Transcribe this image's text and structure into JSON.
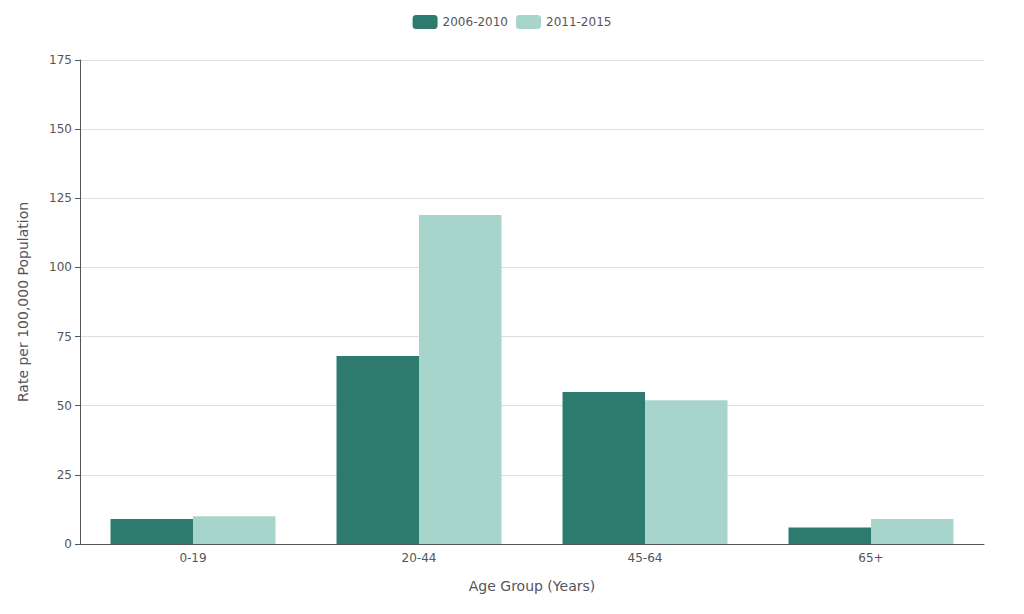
{
  "chart_data": {
    "type": "bar",
    "categories": [
      "0-19",
      "20-44",
      "45-64",
      "65+"
    ],
    "series": [
      {
        "name": "2006-2010",
        "color": "#2d7a6e",
        "values": [
          9.0,
          68.0,
          55.0,
          6.0
        ]
      },
      {
        "name": "2011-2015",
        "color": "#a8d5cb",
        "values": [
          10.0,
          119.0,
          52.0,
          9.0
        ]
      }
    ],
    "xlabel": "Age Group (Years)",
    "ylabel": "Rate per 100,000 Population",
    "ylim": [
      0,
      175
    ],
    "yticks": [
      0,
      25,
      50,
      75,
      100,
      125,
      150,
      175
    ],
    "grid": true,
    "legend": "upper center"
  }
}
